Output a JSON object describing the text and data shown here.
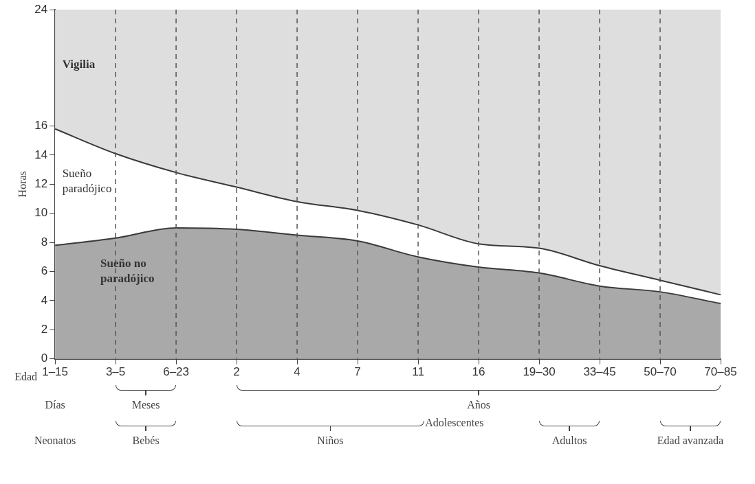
{
  "chart_data": {
    "type": "area",
    "stacked": true,
    "ylabel": "Horas",
    "xlabel": "Edad",
    "categories": [
      "1–15",
      "3–5",
      "6–23",
      "2",
      "4",
      "7",
      "11",
      "16",
      "19–30",
      "33–45",
      "50–70",
      "70–85"
    ],
    "series": [
      {
        "name": "Sueño no paradójico",
        "color": "#a9a9a9",
        "values": [
          7.8,
          8.3,
          9.0,
          8.9,
          8.5,
          8.1,
          7.0,
          6.3,
          5.9,
          5.0,
          4.6,
          3.8
        ]
      },
      {
        "name": "Sueño paradójico",
        "color": "#ffffff",
        "values": [
          8.0,
          5.8,
          3.8,
          2.9,
          2.3,
          2.1,
          2.2,
          1.6,
          1.7,
          1.4,
          0.8,
          0.6
        ]
      }
    ],
    "ylim": [
      0,
      24
    ],
    "yticks": [
      0,
      2,
      4,
      6,
      8,
      10,
      12,
      14,
      16,
      24
    ],
    "grid": "x",
    "legend": false,
    "annotations": [
      "Vigilia",
      "Días",
      "Meses",
      "Años",
      "Neonatos",
      "Bebés",
      "Niños",
      "Adolescentes",
      "Adultos",
      "Edad avanzada"
    ]
  }
}
